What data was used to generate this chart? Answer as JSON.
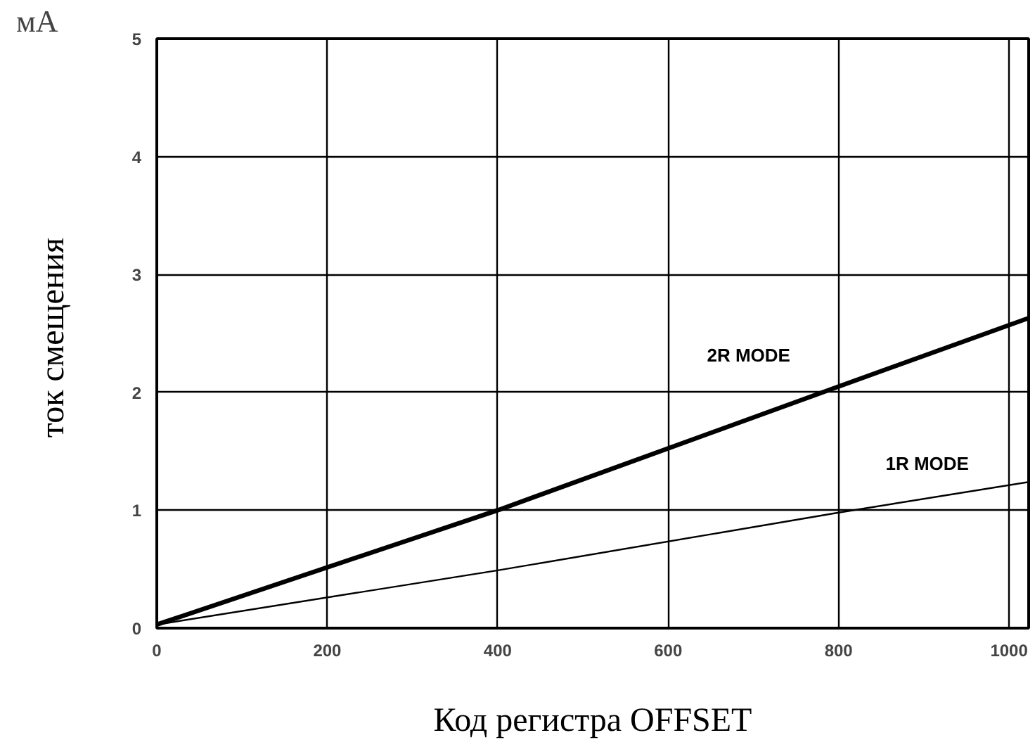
{
  "chart_data": {
    "type": "line",
    "xlabel": "Код регистра OFFSET",
    "ylabel": "ток  смещения",
    "x": [
      0,
      400,
      800,
      1023
    ],
    "series": [
      {
        "name": "2R MODE",
        "color": "#000000",
        "values": [
          0.03,
          1.0,
          2.05,
          2.63
        ]
      },
      {
        "name": "1R MODE",
        "color": "#000000",
        "values": [
          0.03,
          0.49,
          0.98,
          1.24
        ]
      }
    ],
    "annotations": [
      "мА"
    ],
    "xlim": [
      0,
      1023
    ],
    "xticks": [
      0,
      200,
      400,
      600,
      800,
      1000
    ],
    "ylim": [
      0,
      5
    ],
    "yticks": [
      0,
      1,
      2,
      3,
      4,
      5
    ],
    "grid": true,
    "marker": "none",
    "line_style": "solid"
  }
}
